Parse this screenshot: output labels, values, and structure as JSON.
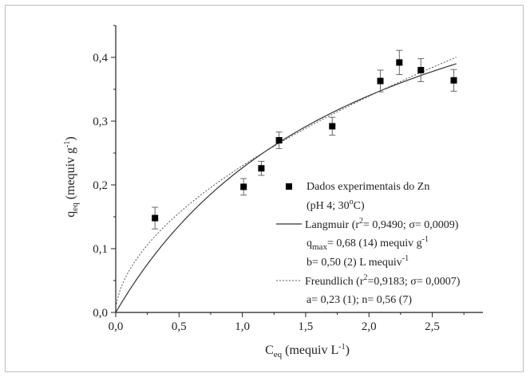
{
  "chart_data": {
    "type": "scatter",
    "x_axis": {
      "label_main": "C",
      "label_sub": "eq",
      "label_unit_pre": " (mequiv L",
      "label_unit_sup": "-1",
      "label_unit_post": ")",
      "range": [
        0.0,
        2.9
      ],
      "ticks": [
        0.0,
        0.5,
        1.0,
        1.5,
        2.0,
        2.5
      ],
      "tick_labels": [
        "0,0",
        "0,5",
        "1,0",
        "1,5",
        "2,0",
        "2,5"
      ]
    },
    "y_axis": {
      "label_main": "q",
      "label_sub": "eq",
      "label_unit_pre": " (mequiv g",
      "label_unit_sup": "-1",
      "label_unit_post": ")",
      "range": [
        0.0,
        0.45
      ],
      "ticks": [
        0.0,
        0.1,
        0.2,
        0.3,
        0.4
      ],
      "tick_labels": [
        "0,0",
        "0,1",
        "0,2",
        "0,3",
        "0,4"
      ]
    },
    "points": [
      {
        "x": 0.31,
        "y": 0.148,
        "err": 0.017
      },
      {
        "x": 1.01,
        "y": 0.197,
        "err": 0.013
      },
      {
        "x": 1.15,
        "y": 0.226,
        "err": 0.011
      },
      {
        "x": 1.29,
        "y": 0.27,
        "err": 0.013
      },
      {
        "x": 1.71,
        "y": 0.292,
        "err": 0.014
      },
      {
        "x": 2.09,
        "y": 0.363,
        "err": 0.017
      },
      {
        "x": 2.24,
        "y": 0.392,
        "err": 0.019
      },
      {
        "x": 2.41,
        "y": 0.38,
        "err": 0.018
      },
      {
        "x": 2.67,
        "y": 0.364,
        "err": 0.017
      }
    ],
    "curves": [
      {
        "model": "langmuir",
        "qmax": 0.68,
        "b": 0.5,
        "style": "solid"
      },
      {
        "model": "freundlich",
        "a": 0.23,
        "n": 0.56,
        "style": "dashed"
      }
    ],
    "legend": {
      "placement": "lower-right",
      "points_label": "Dados experimentais do Zn",
      "conditions_pre": "(pH 4; 30",
      "conditions_sup": "o",
      "conditions_post": "C)",
      "langmuir_pre": "Langmuir (r",
      "langmuir_sup": "2",
      "langmuir_post": "= 0,9490; σ= 0,0009)",
      "qmax_main": "q",
      "qmax_sub": "max",
      "qmax_pre": "= 0,68 (14) mequiv g",
      "qmax_sup": "-1",
      "b_pre": "b= 0,50 (2) L mequiv",
      "b_sup": "-1",
      "freundlich_pre": "Freundlich (r",
      "freundlich_sup": "2",
      "freundlich_post": "=0,9183; σ= 0,0007)",
      "a_text": "a= 0,23 (1); n= 0,56 (7)"
    }
  }
}
